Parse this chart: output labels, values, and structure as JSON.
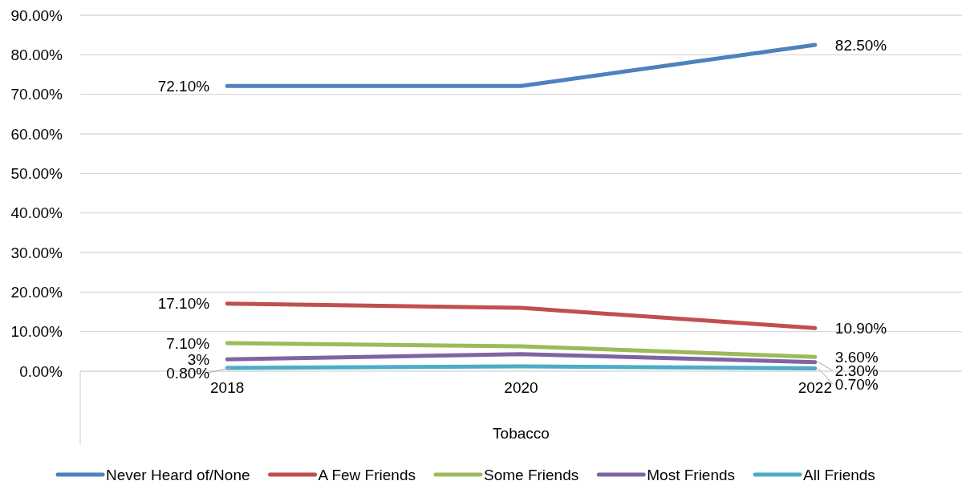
{
  "chart_data": {
    "type": "line",
    "xlabel": "Tobacco",
    "categories": [
      "2018",
      "2020",
      "2022"
    ],
    "ylim": [
      0,
      90
    ],
    "yticks": [
      {
        "value": 0,
        "label": "0.00%"
      },
      {
        "value": 10,
        "label": "10.00%"
      },
      {
        "value": 20,
        "label": "20.00%"
      },
      {
        "value": 30,
        "label": "30.00%"
      },
      {
        "value": 40,
        "label": "40.00%"
      },
      {
        "value": 50,
        "label": "50.00%"
      },
      {
        "value": 60,
        "label": "60.00%"
      },
      {
        "value": 70,
        "label": "70.00%"
      },
      {
        "value": 80,
        "label": "80.00%"
      },
      {
        "value": 90,
        "label": "90.00%"
      }
    ],
    "grid": "y",
    "legend": "bottom",
    "marker": "none",
    "line_style": "solid",
    "series": [
      {
        "name": "Never Heard of/None",
        "color": "#4f81bd",
        "values": [
          72.1,
          72.1,
          82.5
        ],
        "value_labels": [
          "72.10%",
          null,
          "82.50%"
        ]
      },
      {
        "name": "A Few Friends",
        "color": "#c0504d",
        "values": [
          17.1,
          16.0,
          10.9
        ],
        "value_labels": [
          "17.10%",
          null,
          "10.90%"
        ]
      },
      {
        "name": "Some Friends",
        "color": "#9bbb59",
        "values": [
          7.1,
          6.3,
          3.6
        ],
        "value_labels": [
          "7.10%",
          null,
          "3.60%"
        ]
      },
      {
        "name": "Most Friends",
        "color": "#8064a2",
        "values": [
          3,
          4.3,
          2.3
        ],
        "value_labels": [
          "3%",
          null,
          "2.30%"
        ]
      },
      {
        "name": "All Friends",
        "color": "#4bacc6",
        "values": [
          0.8,
          1.2,
          0.7
        ],
        "value_labels": [
          "0.80%",
          null,
          "0.70%"
        ]
      }
    ]
  }
}
